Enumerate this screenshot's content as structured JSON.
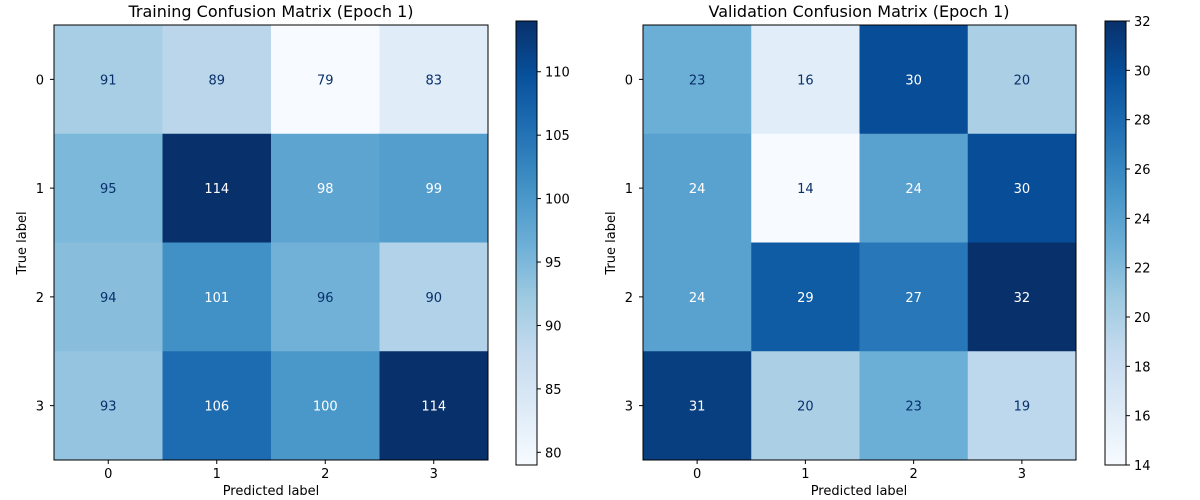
{
  "chart_data": [
    {
      "type": "heatmap",
      "title": "Training Confusion Matrix (Epoch 1)",
      "xlabel": "Predicted label",
      "ylabel": "True label",
      "x_ticks": [
        "0",
        "1",
        "2",
        "3"
      ],
      "y_ticks": [
        "0",
        "1",
        "2",
        "3"
      ],
      "values": [
        [
          91,
          89,
          79,
          83
        ],
        [
          95,
          114,
          98,
          99
        ],
        [
          94,
          101,
          96,
          90
        ],
        [
          93,
          106,
          100,
          114
        ]
      ],
      "colormap": "Blues",
      "color_range": [
        79,
        114
      ],
      "colorbar_ticks": [
        "80",
        "85",
        "90",
        "95",
        "100",
        "105",
        "110"
      ],
      "colorbar_tick_values": [
        80,
        85,
        90,
        95,
        100,
        105,
        110
      ]
    },
    {
      "type": "heatmap",
      "title": "Validation Confusion Matrix (Epoch 1)",
      "xlabel": "Predicted label",
      "ylabel": "True label",
      "x_ticks": [
        "0",
        "1",
        "2",
        "3"
      ],
      "y_ticks": [
        "0",
        "1",
        "2",
        "3"
      ],
      "values": [
        [
          23,
          16,
          30,
          20
        ],
        [
          24,
          14,
          24,
          30
        ],
        [
          24,
          29,
          27,
          32
        ],
        [
          31,
          20,
          23,
          19
        ]
      ],
      "colormap": "Blues",
      "color_range": [
        14,
        32
      ],
      "colorbar_ticks": [
        "14",
        "16",
        "18",
        "20",
        "22",
        "24",
        "26",
        "28",
        "30",
        "32"
      ],
      "colorbar_tick_values": [
        14,
        16,
        18,
        20,
        22,
        24,
        26,
        28,
        30,
        32
      ]
    }
  ]
}
